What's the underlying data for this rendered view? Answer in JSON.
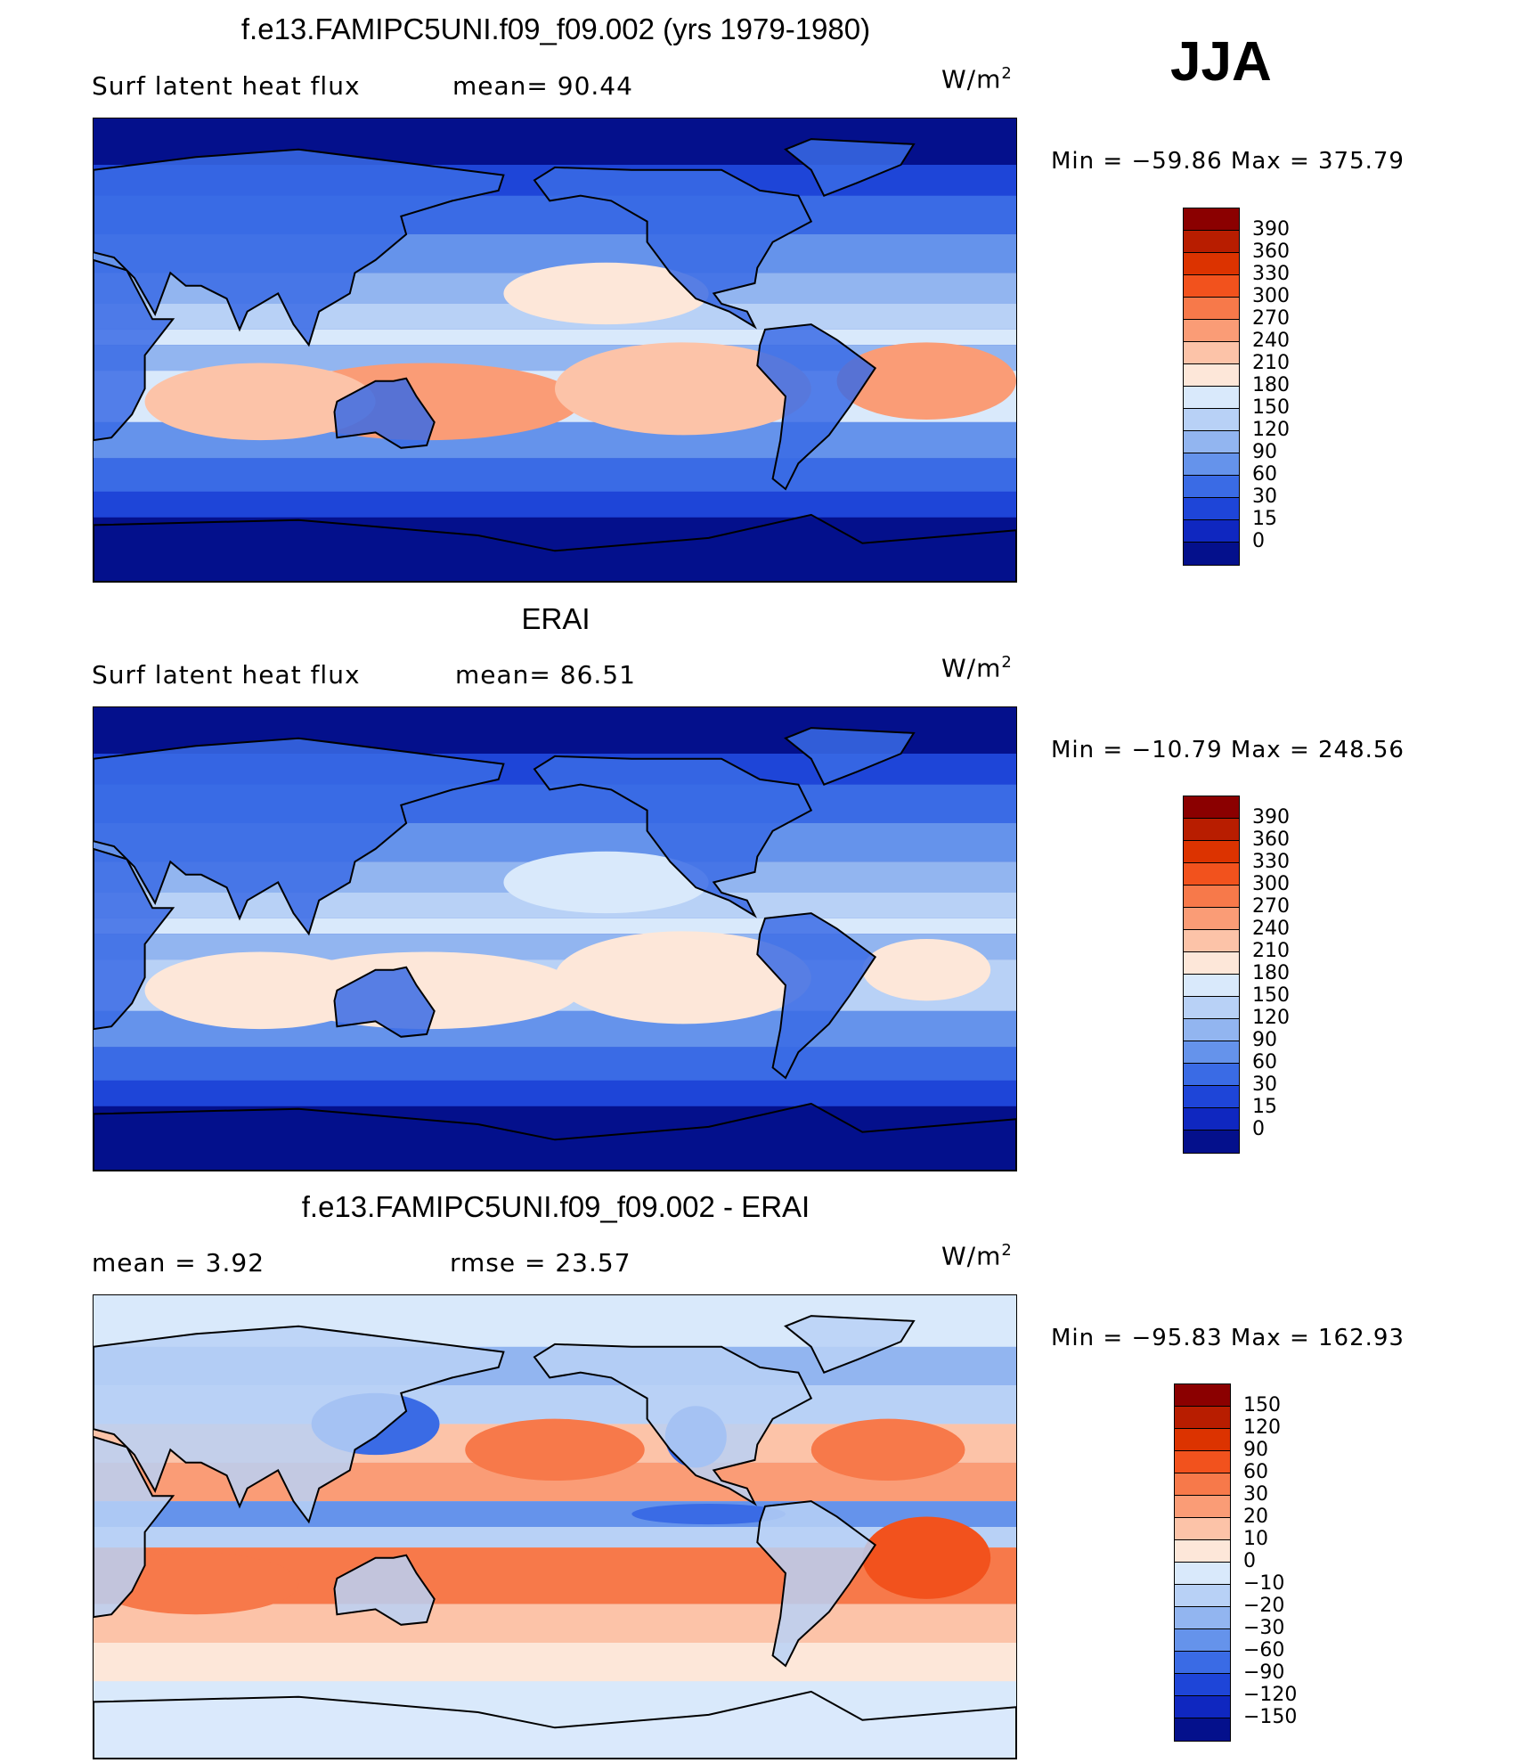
{
  "season": "JJA",
  "panels": [
    {
      "title": "f.e13.FAMIPC5UNI.f09_f09.002 (yrs 1979-1980)",
      "left_text": "Surf  latent  heat  flux",
      "mid_text": "mean=   90.44",
      "unit_base": "W/m",
      "unit_sup": "2",
      "minmax": "Min  =  −59.86  Max  =  375.79",
      "map_name": "model-latent-heat-map"
    },
    {
      "title": "ERAI",
      "left_text": "Surf  latent  heat  flux",
      "mid_text": "mean=   86.51",
      "unit_base": "W/m",
      "unit_sup": "2",
      "minmax": "Min  =  −10.79  Max  =  248.56",
      "map_name": "erai-latent-heat-map"
    },
    {
      "title": "f.e13.FAMIPC5UNI.f09_f09.002 - ERAI",
      "left_text": "mean  =      3.92",
      "mid_text": "rmse  =     23.57",
      "unit_base": "W/m",
      "unit_sup": "2",
      "minmax": "Min  =  −95.83  Max  =  162.93",
      "map_name": "difference-map"
    }
  ],
  "chart_data": [
    {
      "type": "heatmap",
      "title": "f.e13.FAMIPC5UNI.f09_f09.002 (yrs 1979-1980)",
      "variable": "Surf latent heat flux",
      "units": "W/m2",
      "mean": 90.44,
      "min": -59.86,
      "max": 375.79,
      "colorbar_levels": [
        390,
        360,
        330,
        300,
        270,
        240,
        210,
        180,
        150,
        120,
        90,
        60,
        30,
        15,
        0
      ],
      "colorbar_colors": [
        "#8b0000",
        "#b81d00",
        "#dc3300",
        "#f2521d",
        "#f7794a",
        "#fa9c76",
        "#fcc3a8",
        "#fde7d9",
        "#d9e9fb",
        "#b8d1f6",
        "#92b5f0",
        "#6593eb",
        "#3a6be5",
        "#1e45d8",
        "#0f27c0",
        "#04108c"
      ]
    },
    {
      "type": "heatmap",
      "title": "ERAI",
      "variable": "Surf latent heat flux",
      "units": "W/m2",
      "mean": 86.51,
      "min": -10.79,
      "max": 248.56,
      "colorbar_levels": [
        390,
        360,
        330,
        300,
        270,
        240,
        210,
        180,
        150,
        120,
        90,
        60,
        30,
        15,
        0
      ],
      "colorbar_colors": [
        "#8b0000",
        "#b81d00",
        "#dc3300",
        "#f2521d",
        "#f7794a",
        "#fa9c76",
        "#fcc3a8",
        "#fde7d9",
        "#d9e9fb",
        "#b8d1f6",
        "#92b5f0",
        "#6593eb",
        "#3a6be5",
        "#1e45d8",
        "#0f27c0",
        "#04108c"
      ]
    },
    {
      "type": "heatmap",
      "title": "f.e13.FAMIPC5UNI.f09_f09.002 - ERAI",
      "units": "W/m2",
      "mean": 3.92,
      "rmse": 23.57,
      "min": -95.83,
      "max": 162.93,
      "colorbar_levels": [
        150,
        120,
        90,
        60,
        30,
        20,
        10,
        0,
        -10,
        -20,
        -30,
        -60,
        -90,
        -120,
        -150
      ],
      "colorbar_colors": [
        "#8b0000",
        "#b81d00",
        "#dc3300",
        "#f2521d",
        "#f7794a",
        "#fa9c76",
        "#fcc3a8",
        "#fde7d9",
        "#d9e9fb",
        "#b8d1f6",
        "#92b5f0",
        "#6593eb",
        "#3a6be5",
        "#1e45d8",
        "#0f27c0",
        "#04108c"
      ]
    }
  ]
}
